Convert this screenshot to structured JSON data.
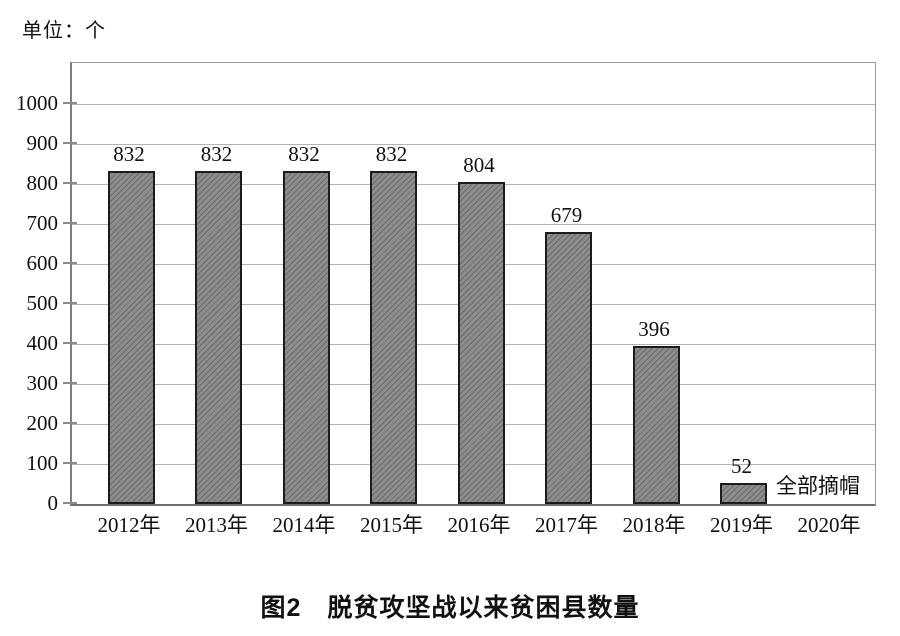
{
  "page": {
    "unit_label": "单位：个",
    "caption": "图2　脱贫攻坚战以来贫困县数量"
  },
  "chart_data": {
    "type": "bar",
    "title": "脱贫攻坚战以来贫困县数量",
    "figure_label": "图2",
    "unit_label": "单位：个",
    "categories": [
      "2012年",
      "2013年",
      "2014年",
      "2015年",
      "2016年",
      "2017年",
      "2018年",
      "2019年",
      "2020年"
    ],
    "values": [
      832,
      832,
      832,
      832,
      804,
      679,
      396,
      52,
      null
    ],
    "bar_labels": [
      "832",
      "832",
      "832",
      "832",
      "804",
      "679",
      "396",
      "52",
      ""
    ],
    "annotation": {
      "text": "全部摘帽",
      "category": "2020年"
    },
    "ylim": [
      0,
      1000
    ],
    "yticks": [
      0,
      100,
      200,
      300,
      400,
      500,
      600,
      700,
      800,
      900,
      1000
    ],
    "grid": true,
    "legend": null,
    "colors": {
      "bar_fill": "#8d8d8d",
      "bar_border": "#1c1c1c",
      "grid_color": "#b3b3b3",
      "axis_color": "#7d7d7d",
      "text_color": "#111111"
    }
  }
}
